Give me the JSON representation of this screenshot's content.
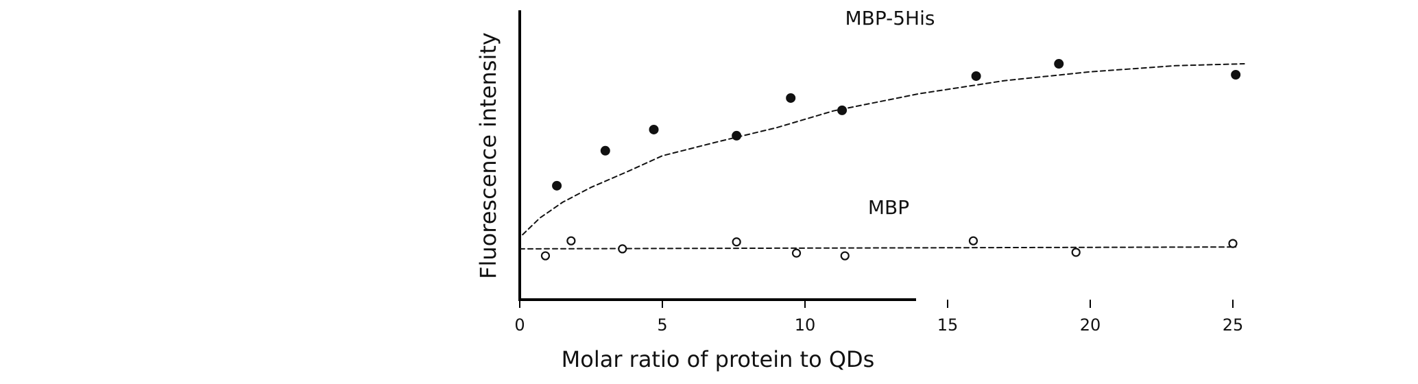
{
  "chart_data": {
    "type": "scatter",
    "title": "",
    "xlabel": "Molar ratio of protein to QDs",
    "ylabel": "Fluorescence intensity",
    "xlim": [
      0,
      27.5
    ],
    "ylim": [
      0,
      100
    ],
    "xticks": [
      0,
      5,
      10,
      15,
      20,
      25
    ],
    "xtick_labels": [
      "0",
      "5",
      "10",
      "15",
      "20",
      "25"
    ],
    "yticks_shown": false,
    "grid": false,
    "legend": "none (series labeled directly on plot)",
    "series": [
      {
        "name": "MBP-5His",
        "marker": "filled-circle",
        "color": "#111111",
        "points": [
          {
            "x": 1.3,
            "y": 42.6
          },
          {
            "x": 3.0,
            "y": 55.7
          },
          {
            "x": 4.7,
            "y": 63.6
          },
          {
            "x": 7.6,
            "y": 61.3
          },
          {
            "x": 9.5,
            "y": 75.4
          },
          {
            "x": 11.3,
            "y": 70.8
          },
          {
            "x": 16.0,
            "y": 83.6
          },
          {
            "x": 18.9,
            "y": 88.2
          },
          {
            "x": 25.1,
            "y": 84.1
          }
        ],
        "fit": {
          "style": "dashed",
          "points": [
            {
              "x": 0.1,
              "y": 24.3
            },
            {
              "x": 0.7,
              "y": 30.5
            },
            {
              "x": 1.5,
              "y": 36.4
            },
            {
              "x": 2.5,
              "y": 42.0
            },
            {
              "x": 3.8,
              "y": 48.0
            },
            {
              "x": 5.0,
              "y": 53.8
            },
            {
              "x": 7.0,
              "y": 59.2
            },
            {
              "x": 9.0,
              "y": 64.3
            },
            {
              "x": 11.0,
              "y": 70.6
            },
            {
              "x": 14.0,
              "y": 77.0
            },
            {
              "x": 17.0,
              "y": 81.9
            },
            {
              "x": 20.0,
              "y": 85.2
            },
            {
              "x": 23.0,
              "y": 87.5
            },
            {
              "x": 25.4,
              "y": 88.2
            }
          ]
        }
      },
      {
        "name": "MBP",
        "marker": "open-circle",
        "color": "#111111",
        "points": [
          {
            "x": 0.9,
            "y": 16.4
          },
          {
            "x": 1.8,
            "y": 22.0
          },
          {
            "x": 3.6,
            "y": 19.0
          },
          {
            "x": 7.6,
            "y": 21.6
          },
          {
            "x": 9.7,
            "y": 17.4
          },
          {
            "x": 11.4,
            "y": 16.4
          },
          {
            "x": 15.9,
            "y": 22.0
          },
          {
            "x": 19.5,
            "y": 17.7
          },
          {
            "x": 25.0,
            "y": 21.0
          }
        ],
        "fit": {
          "style": "dashed",
          "points": [
            {
              "x": 0.0,
              "y": 19.0
            },
            {
              "x": 25.1,
              "y": 19.7
            }
          ]
        }
      }
    ]
  }
}
